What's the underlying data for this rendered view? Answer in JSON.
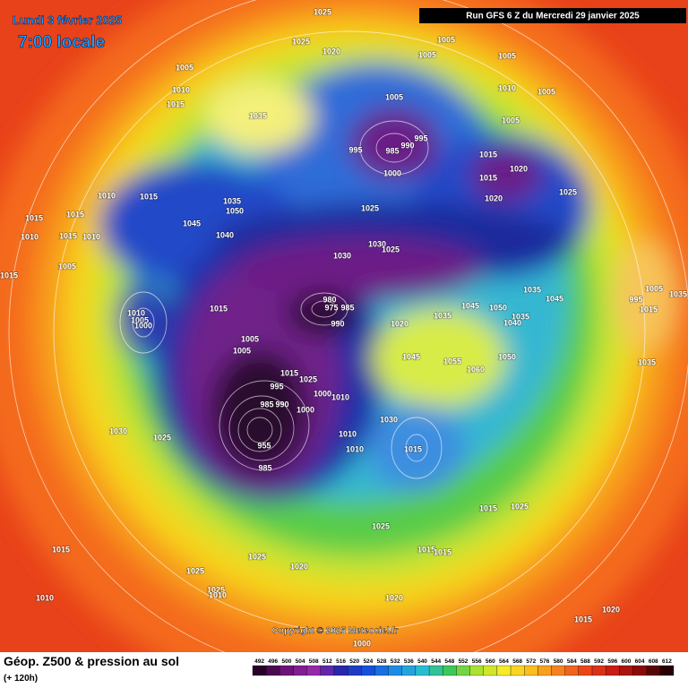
{
  "header": {
    "date": "Lundi 3 février 2025",
    "time": "7:00 locale",
    "run": "Run GFS 6 Z du Mercredi 29 janvier 2025"
  },
  "copyright": "Copyright © 2025 Meteociel.fr",
  "footer": {
    "title": "Géop. Z500 & pression au sol",
    "lead": "(+ 120h)"
  },
  "colorbar": {
    "labels": [
      "492",
      "496",
      "500",
      "504",
      "508",
      "512",
      "516",
      "520",
      "524",
      "528",
      "532",
      "536",
      "540",
      "544",
      "548",
      "552",
      "556",
      "560",
      "564",
      "568",
      "572",
      "576",
      "580",
      "584",
      "588",
      "592",
      "596",
      "600",
      "604",
      "608",
      "612"
    ]
  },
  "isobar_labels": [
    "1025",
    "1025",
    "1020",
    "1005",
    "1005",
    "1005",
    "1005",
    "1010",
    "1015",
    "1010",
    "1005",
    "1035",
    "1005",
    "1005",
    "995",
    "985",
    "990",
    "995",
    "1000",
    "1015",
    "1020",
    "1015",
    "1025",
    "1020",
    "1010",
    "1015",
    "1035",
    "1050",
    "1045",
    "1040",
    "1015",
    "1015",
    "1010",
    "1015",
    "1010",
    "1005",
    "1015",
    "1025",
    "1030",
    "1025",
    "1030",
    "1015",
    "1010",
    "1005",
    "1000",
    "980",
    "975",
    "985",
    "990",
    "1035",
    "1045",
    "1045",
    "1050",
    "1035",
    "1040",
    "1035",
    "1020",
    "1005",
    "1005",
    "1045",
    "1055",
    "1060",
    "1050",
    "1015",
    "1025",
    "1000",
    "1010",
    "1000",
    "995",
    "990",
    "985",
    "955",
    "985",
    "1030",
    "1025",
    "1030",
    "1010",
    "1010",
    "1015",
    "1015",
    "1025",
    "1025",
    "1015",
    "1015",
    "1025",
    "1020",
    "1020",
    "1015",
    "1025",
    "1025",
    "1010",
    "1010",
    "1015",
    "1020",
    "1000",
    "1005",
    "995",
    "1015",
    "1035",
    "1035"
  ]
}
